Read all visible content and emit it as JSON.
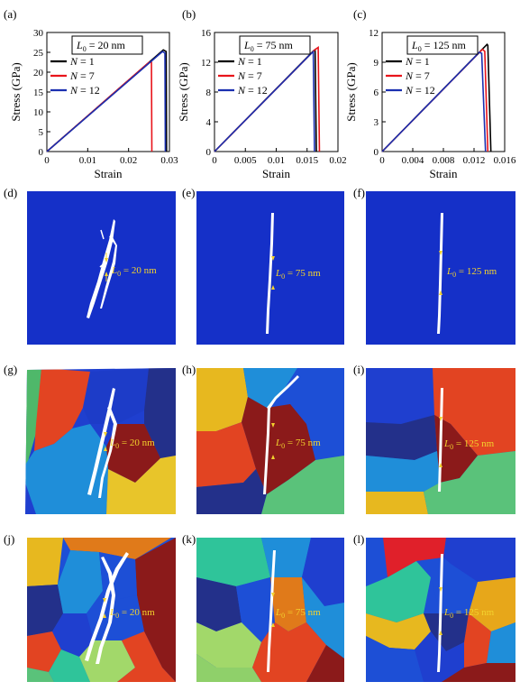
{
  "panels": {
    "a": "(a)",
    "b": "(b)",
    "c": "(c)",
    "d": "(d)",
    "e": "(e)",
    "f": "(f)",
    "g": "(g)",
    "h": "(h)",
    "i": "(i)",
    "j": "(j)",
    "k": "(k)",
    "l": "(l)"
  },
  "legend_entries": [
    "N = 1",
    "N = 7",
    "N = 12"
  ],
  "annotations": {
    "col1": "L0 = 20 nm",
    "col2": "L0 = 75 nm",
    "col3": "L0 = 125 nm"
  },
  "colors": {
    "n1": "#000000",
    "n7": "#e8141b",
    "n12": "#1a2fb0",
    "single_crystal": "#1530c8",
    "annotation": "#f2d22e",
    "crack": "#ffffff"
  },
  "chart_data": [
    {
      "type": "line",
      "panel": "(a)",
      "title": "L0 = 20 nm",
      "xlabel": "Strain",
      "ylabel": "Stress (GPa)",
      "xlim": [
        0,
        0.03
      ],
      "ylim": [
        0,
        30
      ],
      "xticks": [
        "0",
        "0.01",
        "0.02",
        "0.03"
      ],
      "yticks": [
        "0",
        "5",
        "10",
        "15",
        "20",
        "25",
        "30"
      ],
      "legend_position": "top-left",
      "series": [
        {
          "name": "N = 1",
          "x": [
            0,
            0.0285,
            0.0292,
            0.0293
          ],
          "y": [
            0,
            25.6,
            25.2,
            0
          ]
        },
        {
          "name": "N = 7",
          "x": [
            0,
            0.025,
            0.0256,
            0.0257
          ],
          "y": [
            0,
            22.5,
            22.5,
            0
          ]
        },
        {
          "name": "N = 12",
          "x": [
            0,
            0.0283,
            0.0289,
            0.029
          ],
          "y": [
            0,
            25.2,
            24.8,
            0
          ]
        }
      ]
    },
    {
      "type": "line",
      "panel": "(b)",
      "title": "L0 = 75 nm",
      "xlabel": "Strain",
      "ylabel": "Stress (GPa)",
      "xlim": [
        0,
        0.02
      ],
      "ylim": [
        0,
        16
      ],
      "xticks": [
        "0",
        "0.005",
        "0.01",
        "0.015",
        "0.02"
      ],
      "yticks": [
        "0",
        "4",
        "8",
        "12",
        "16"
      ],
      "legend_position": "top-left",
      "series": [
        {
          "name": "N = 1",
          "x": [
            0,
            0.016,
            0.0163,
            0.0165
          ],
          "y": [
            0,
            13.5,
            13.7,
            0
          ]
        },
        {
          "name": "N = 7",
          "x": [
            0,
            0.0163,
            0.0168,
            0.017
          ],
          "y": [
            0,
            13.7,
            14.0,
            0
          ]
        },
        {
          "name": "N = 12",
          "x": [
            0,
            0.0157,
            0.016,
            0.0162
          ],
          "y": [
            0,
            13.2,
            13.4,
            0
          ]
        }
      ]
    },
    {
      "type": "line",
      "panel": "(c)",
      "title": "L0 = 125 nm",
      "xlabel": "Strain",
      "ylabel": "Stress (GPa)",
      "xlim": [
        0,
        0.016
      ],
      "ylim": [
        0,
        12
      ],
      "xticks": [
        "0",
        "0.004",
        "0.008",
        "0.012",
        "0.016"
      ],
      "yticks": [
        "0",
        "3",
        "6",
        "9",
        "12"
      ],
      "legend_position": "top-left",
      "series": [
        {
          "name": "N = 1",
          "x": [
            0,
            0.0137,
            0.0138,
            0.0142
          ],
          "y": [
            0,
            10.8,
            10.7,
            0
          ]
        },
        {
          "name": "N = 7",
          "x": [
            0,
            0.0131,
            0.0134,
            0.0138
          ],
          "y": [
            0,
            10.3,
            10.1,
            0
          ]
        },
        {
          "name": "N = 12",
          "x": [
            0,
            0.0127,
            0.013,
            0.0135
          ],
          "y": [
            0,
            10.0,
            9.9,
            0
          ]
        }
      ]
    }
  ]
}
